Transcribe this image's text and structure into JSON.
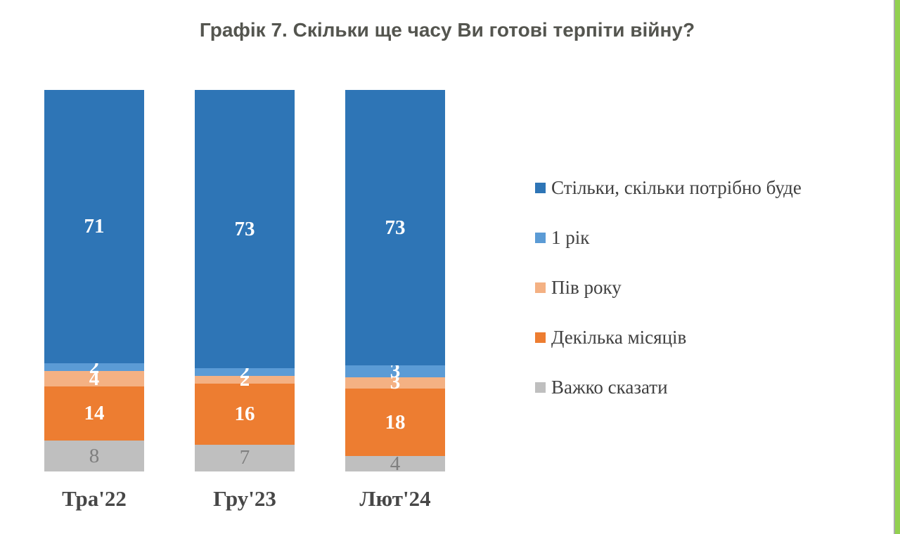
{
  "title": "Графік 7. Скільки ще часу Ви готові терпіти війну?",
  "chart_data": {
    "type": "bar",
    "stacked": true,
    "orientation": "vertical",
    "title": "Графік 7. Скільки ще часу Ви готові терпіти війну?",
    "categories": [
      "Тра'22",
      "Гру'23",
      "Лют'24"
    ],
    "series": [
      {
        "name": "Стільки, скільки потрібно буде",
        "color": "#2E75B6",
        "label_color": "#FFFFFF",
        "label_weight": "bold",
        "values": [
          71,
          73,
          73
        ]
      },
      {
        "name": "1 рік",
        "color": "#5B9BD5",
        "label_color": "#FFFFFF",
        "label_weight": "bold",
        "values": [
          2,
          2,
          3
        ]
      },
      {
        "name": "Пів року",
        "color": "#F4B183",
        "label_color": "#FFFFFF",
        "label_weight": "bold",
        "values": [
          4,
          2,
          3
        ]
      },
      {
        "name": "Декілька місяців",
        "color": "#ED7D31",
        "label_color": "#FFFFFF",
        "label_weight": "bold",
        "values": [
          14,
          16,
          18
        ]
      },
      {
        "name": "Важко сказати",
        "color": "#BFBFBF",
        "label_color": "#7F7F7F",
        "label_weight": "normal",
        "values": [
          8,
          7,
          4
        ]
      }
    ],
    "legend_position": "right",
    "grid": false,
    "axes_hidden": true,
    "value_labels": true
  },
  "decor": {
    "background": "#FFFFFF",
    "right_stripe_color": "#92D050",
    "right_stripe_edge_color": "#ABABAB"
  }
}
